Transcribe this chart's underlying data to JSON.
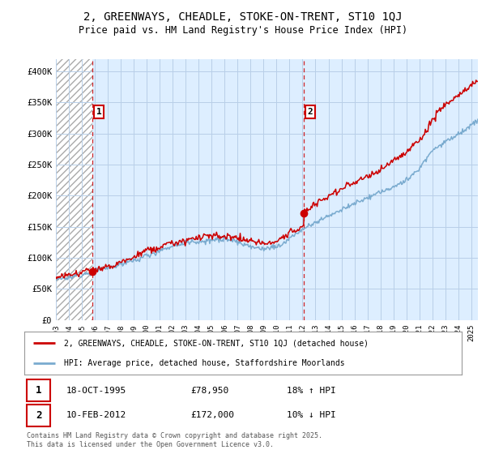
{
  "title": "2, GREENWAYS, CHEADLE, STOKE-ON-TRENT, ST10 1QJ",
  "subtitle": "Price paid vs. HM Land Registry's House Price Index (HPI)",
  "ylim": [
    0,
    420000
  ],
  "yticks": [
    0,
    50000,
    100000,
    150000,
    200000,
    250000,
    300000,
    350000,
    400000
  ],
  "ytick_labels": [
    "£0",
    "£50K",
    "£100K",
    "£150K",
    "£200K",
    "£250K",
    "£300K",
    "£350K",
    "£400K"
  ],
  "x_start_year": 1993,
  "x_end_year": 2025.5,
  "sale1_year": 1995.8,
  "sale1_price": 78950,
  "sale2_year": 2012.1,
  "sale2_price": 172000,
  "red_color": "#cc0000",
  "blue_color": "#7aabcf",
  "hatch_color": "#cccccc",
  "bg_blue": "#ddeeff",
  "bg_hatch": "#ffffff",
  "grid_color": "#b8cfe8",
  "price_line_label": "2, GREENWAYS, CHEADLE, STOKE-ON-TRENT, ST10 1QJ (detached house)",
  "hpi_line_label": "HPI: Average price, detached house, Staffordshire Moorlands",
  "sale1_date_str": "18-OCT-1995",
  "sale1_price_str": "£78,950",
  "sale1_hpi_str": "18% ↑ HPI",
  "sale2_date_str": "10-FEB-2012",
  "sale2_price_str": "£172,000",
  "sale2_hpi_str": "10% ↓ HPI",
  "footer": "Contains HM Land Registry data © Crown copyright and database right 2025.\nThis data is licensed under the Open Government Licence v3.0."
}
